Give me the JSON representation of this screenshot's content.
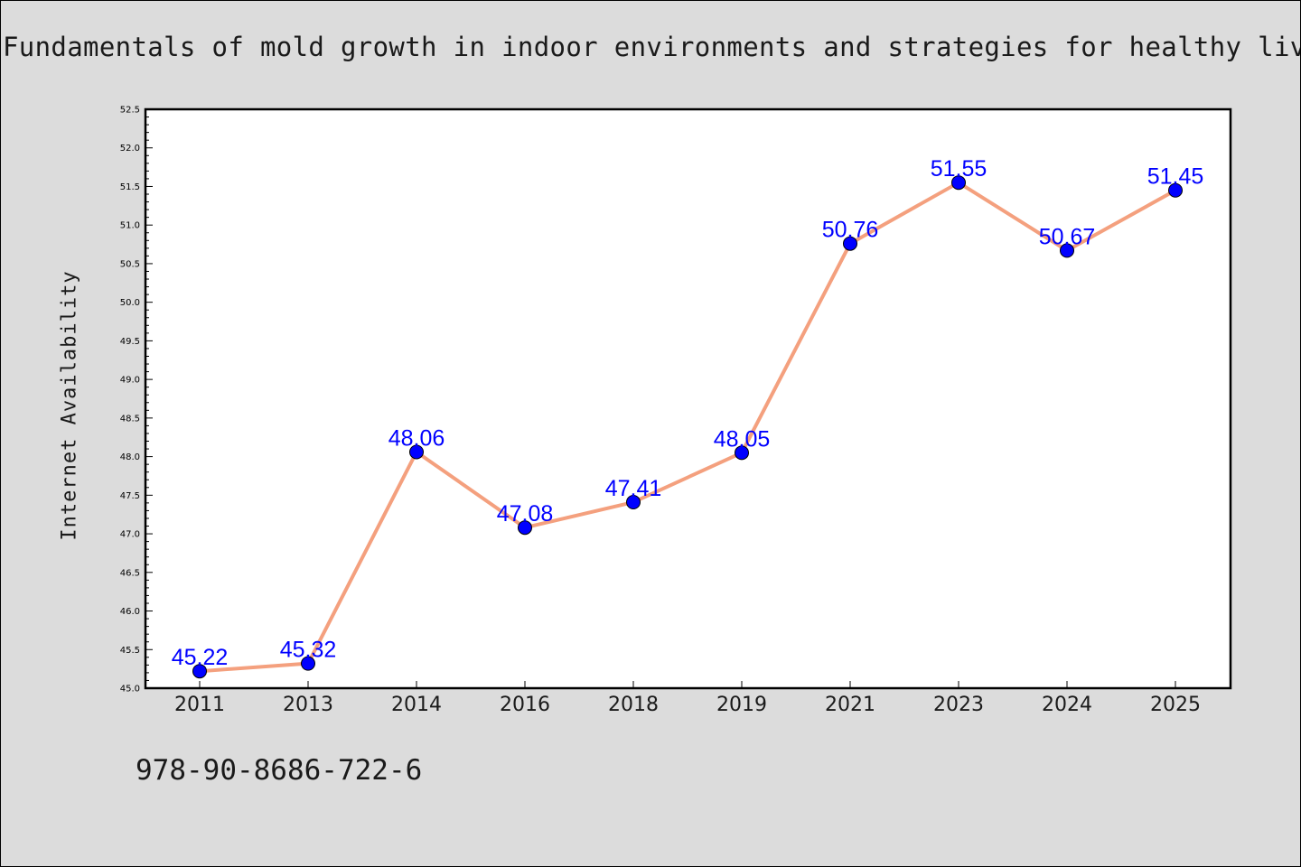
{
  "title": "Fundamentals of mold growth in indoor environments and strategies for healthy living",
  "isbn": "978-90-8686-722-6",
  "colors": {
    "line": "#f4a07e",
    "marker": "#0000ff",
    "label": "#0000ff",
    "background": "#dcdcdc",
    "plot_background": "#ffffff"
  },
  "chart_data": {
    "type": "line",
    "title": "Fundamentals of mold growth in indoor environments and strategies for healthy living",
    "xlabel": "",
    "ylabel": "Internet Availability",
    "categories": [
      "2011",
      "2013",
      "2014",
      "2016",
      "2018",
      "2019",
      "2021",
      "2023",
      "2024",
      "2025"
    ],
    "values": [
      45.22,
      45.32,
      48.06,
      47.08,
      47.41,
      48.05,
      50.76,
      51.55,
      50.67,
      51.45
    ],
    "data_labels": [
      "45.22",
      "45.32",
      "48.06",
      "47.08",
      "47.41",
      "48.05",
      "50.76",
      "51.55",
      "50.67",
      "51.45"
    ],
    "ylim": [
      45.0,
      52.5
    ],
    "yticks": [
      "45.0",
      "45.5",
      "46.0",
      "46.5",
      "47.0",
      "47.5",
      "48.0",
      "48.5",
      "49.0",
      "49.5",
      "50.0",
      "50.5",
      "51.0",
      "51.5",
      "52.0",
      "52.5"
    ],
    "grid": false,
    "legend": "none"
  }
}
